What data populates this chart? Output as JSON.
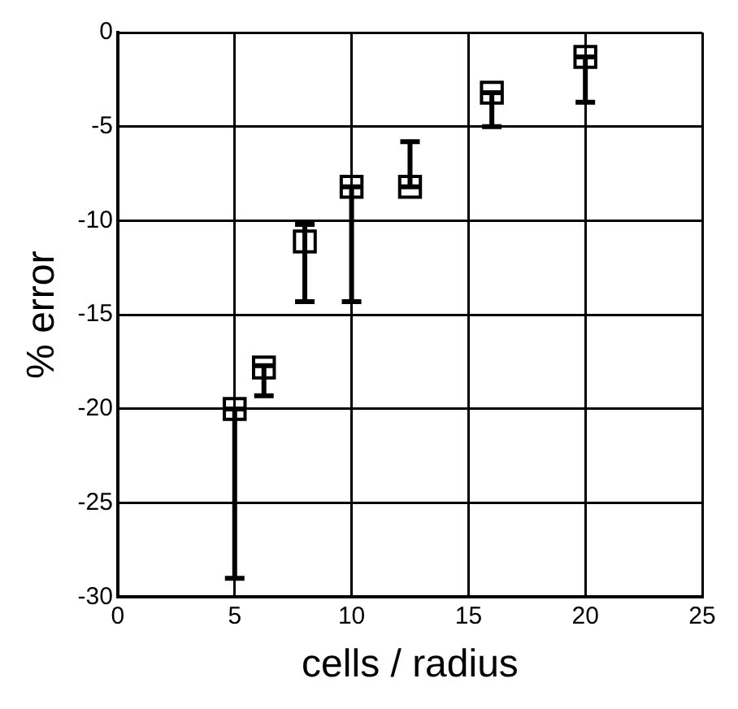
{
  "chart_data": {
    "type": "scatter",
    "xlabel": "cells / radius",
    "ylabel": "% error",
    "x": [
      5,
      6.25,
      8,
      10,
      12.5,
      16,
      20
    ],
    "values": [
      -20,
      -17.8,
      -11.1,
      -8.2,
      -8.2,
      -3.2,
      -1.3
    ],
    "errors": [
      [
        -29,
        -20
      ],
      [
        -19.3,
        -17.7
      ],
      [
        -14.3,
        -10.2
      ],
      [
        -14.3,
        -8.2
      ],
      [
        -8.2,
        -5.8
      ],
      [
        -5,
        -3.2
      ],
      [
        -3.7,
        -1.3
      ]
    ],
    "color": "#000000",
    "marker": "square",
    "xlim": [
      0,
      25
    ],
    "xticks": [
      0,
      5,
      10,
      15,
      20,
      25
    ],
    "ylim": [
      -30,
      0
    ],
    "yticks": [
      -30,
      -25,
      -20,
      -15,
      -10,
      -5,
      0
    ],
    "grid": true,
    "legend": false
  }
}
